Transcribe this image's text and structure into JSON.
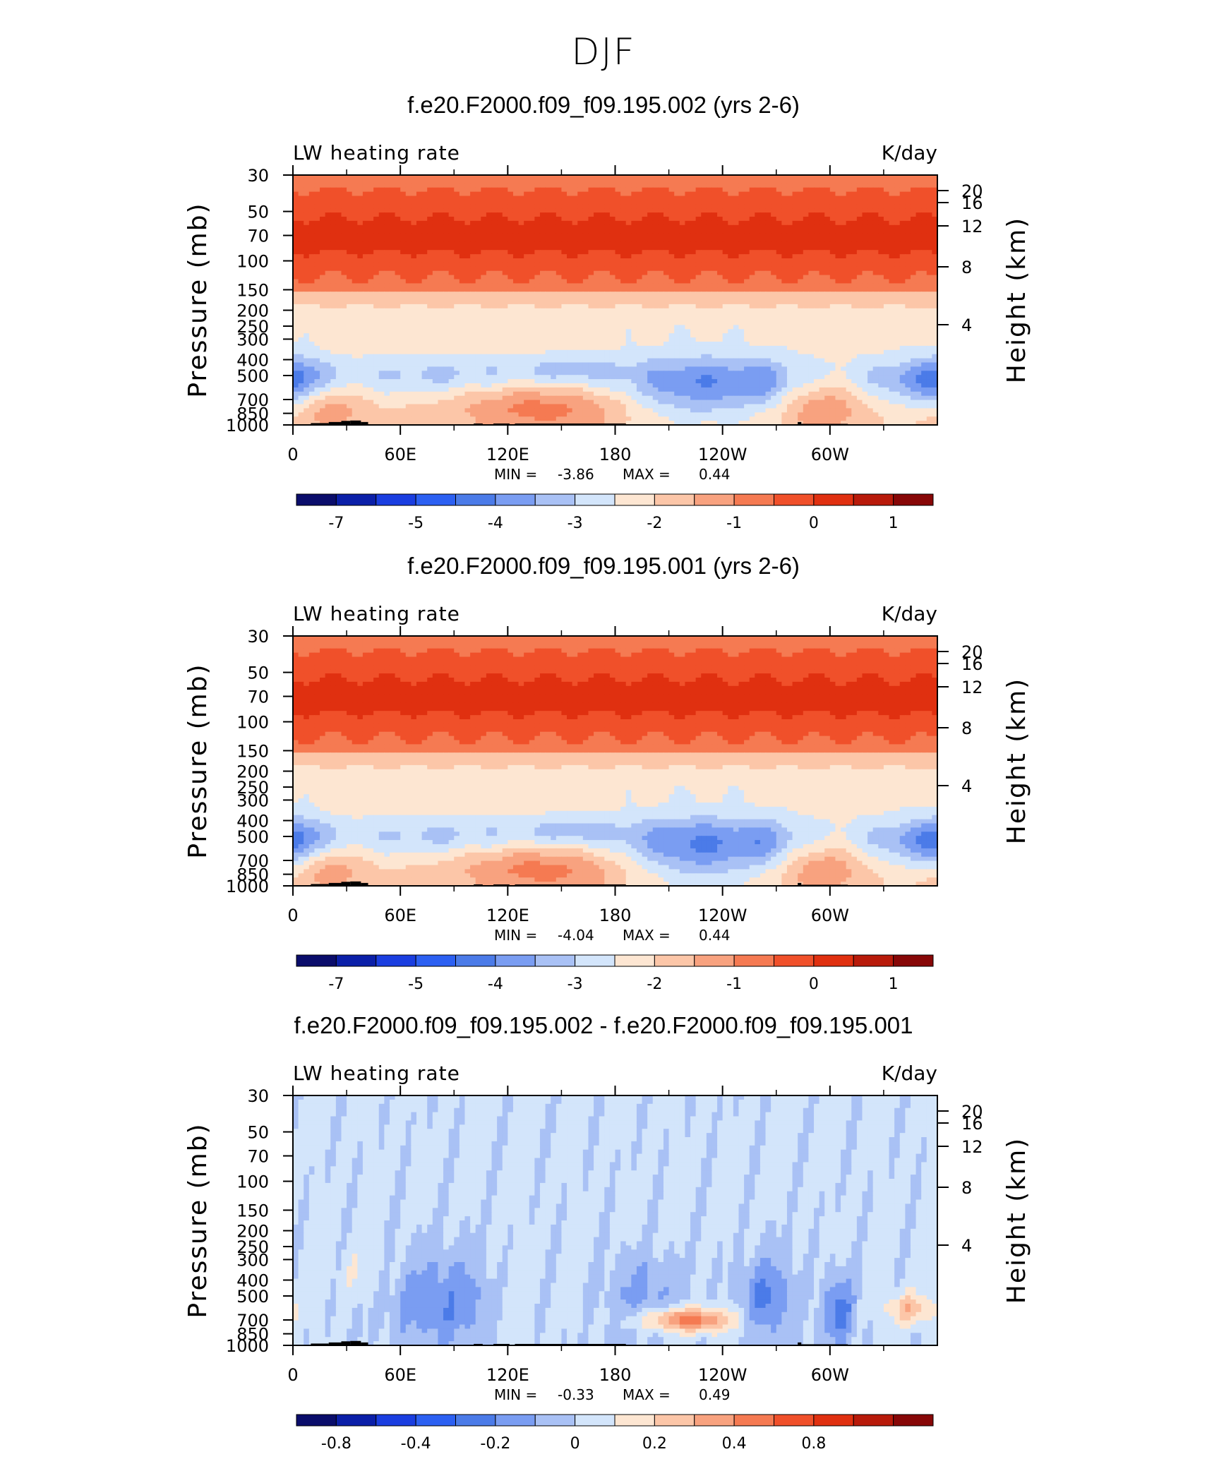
{
  "page_title": "DJF",
  "colors": {
    "palette_18": [
      "#0a0d6b",
      "#0b1fa8",
      "#1a3ee0",
      "#2c60f2",
      "#4b7be8",
      "#7a9df2",
      "#a9c1f5",
      "#d3e5fb",
      "#fde6d2",
      "#fcc6a8",
      "#f8a27f",
      "#f57a52",
      "#f0502a",
      "#e03010",
      "#b81a0a",
      "#870707"
    ],
    "land_mask": "#000000"
  },
  "chart_data": [
    {
      "type": "heatmap",
      "title": "f.e20.F2000.f09_f09.195.002 (yrs 2-6)",
      "left_label": "LW heating rate",
      "right_label": "K/day",
      "ylabel": "Pressure (mb)",
      "y2label": "Height (km)",
      "x_ticks": [
        "0",
        "60E",
        "120E",
        "180",
        "120W",
        "60W"
      ],
      "y_ticks": [
        "30",
        "50",
        "70",
        "100",
        "150",
        "200",
        "250",
        "300",
        "400",
        "500",
        "700",
        "850",
        "1000"
      ],
      "y2_ticks": [
        "20",
        "16",
        "12",
        "8",
        "4"
      ],
      "stats": {
        "min_label": "MIN =",
        "min": "-3.86",
        "max_label": "MAX =",
        "max": "0.44"
      },
      "colorbar": {
        "labels": [
          "-7",
          "-5",
          "-4",
          "-3",
          "-2",
          "-1",
          "0",
          "1"
        ]
      }
    },
    {
      "type": "heatmap",
      "title": "f.e20.F2000.f09_f09.195.001 (yrs 2-6)",
      "left_label": "LW heating rate",
      "right_label": "K/day",
      "ylabel": "Pressure (mb)",
      "y2label": "Height (km)",
      "x_ticks": [
        "0",
        "60E",
        "120E",
        "180",
        "120W",
        "60W"
      ],
      "y_ticks": [
        "30",
        "50",
        "70",
        "100",
        "150",
        "200",
        "250",
        "300",
        "400",
        "500",
        "700",
        "850",
        "1000"
      ],
      "y2_ticks": [
        "20",
        "16",
        "12",
        "8",
        "4"
      ],
      "stats": {
        "min_label": "MIN =",
        "min": "-4.04",
        "max_label": "MAX =",
        "max": "0.44"
      },
      "colorbar": {
        "labels": [
          "-7",
          "-5",
          "-4",
          "-3",
          "-2",
          "-1",
          "0",
          "1"
        ]
      }
    },
    {
      "type": "heatmap",
      "title": "f.e20.F2000.f09_f09.195.002 - f.e20.F2000.f09_f09.195.001",
      "left_label": "LW heating rate",
      "right_label": "K/day",
      "ylabel": "Pressure (mb)",
      "y2label": "Height (km)",
      "x_ticks": [
        "0",
        "60E",
        "120E",
        "180",
        "120W",
        "60W"
      ],
      "y_ticks": [
        "30",
        "50",
        "70",
        "100",
        "150",
        "200",
        "250",
        "300",
        "400",
        "500",
        "700",
        "850",
        "1000"
      ],
      "y2_ticks": [
        "20",
        "16",
        "12",
        "8",
        "4"
      ],
      "stats": {
        "min_label": "MIN =",
        "min": "-0.33",
        "max_label": "MAX =",
        "max": "0.49"
      },
      "colorbar": {
        "labels": [
          "-0.8",
          "-0.4",
          "-0.2",
          "0",
          "0.2",
          "0.4",
          "0.8"
        ]
      }
    }
  ]
}
